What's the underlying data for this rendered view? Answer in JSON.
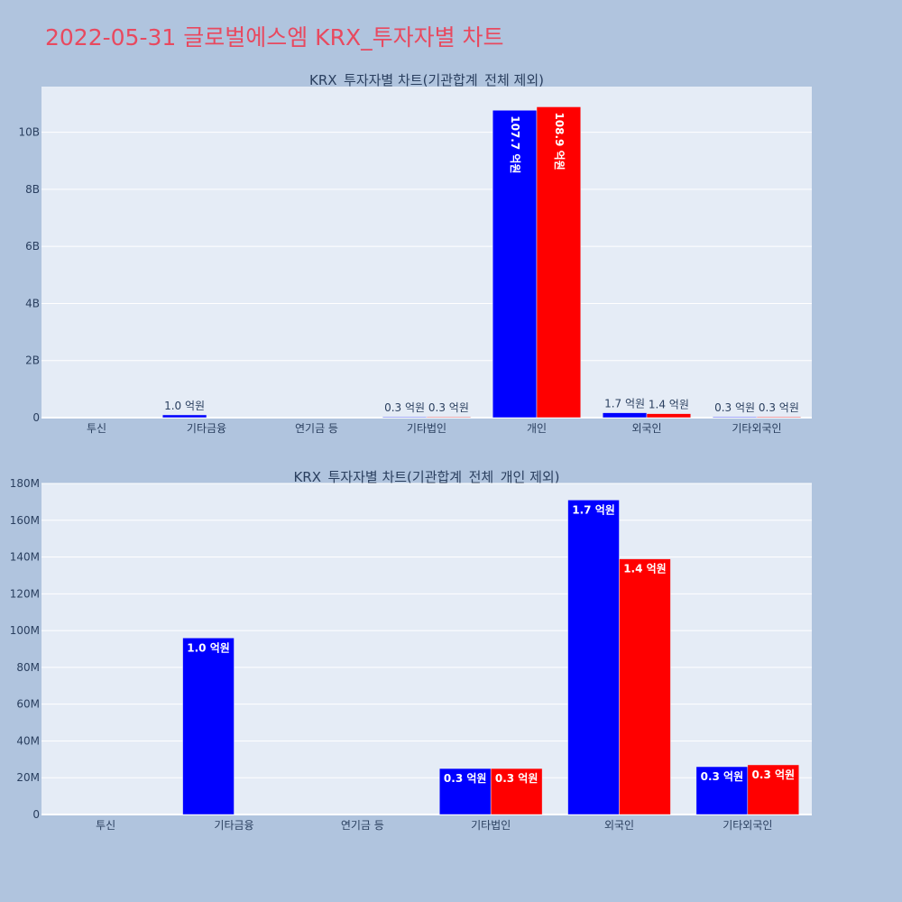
{
  "page": {
    "title": "2022-05-31 글로벌에스엠 KRX_투자자별 차트",
    "background": "#b0c4de"
  },
  "colors": {
    "buy": "#0000ff",
    "sell": "#ff0000",
    "plot_bg": "#e5ecf6",
    "title_color": "#e8495f"
  },
  "chart_data": [
    {
      "type": "bar",
      "title": "KRX_투자자별 차트(기관합계_전체 제외)",
      "categories": [
        "투신",
        "기타금융",
        "연기금 등",
        "기타법인",
        "개인",
        "외국인",
        "기타외국인"
      ],
      "ylim": [
        0,
        11600000000
      ],
      "yticks": [
        0,
        2000000000,
        4000000000,
        6000000000,
        8000000000,
        10000000000
      ],
      "ytick_labels": [
        "0",
        "2B",
        "4B",
        "6B",
        "8B",
        "10B"
      ],
      "grid": true,
      "label_position": "outside",
      "series": [
        {
          "color": "#0000ff",
          "values": [
            0,
            96000000,
            0,
            25000000,
            10770000000,
            171000000,
            26000000
          ],
          "labels": [
            "",
            "1.0 억원",
            "",
            "0.3 억원",
            "107.7 억원",
            "1.7 억원",
            "0.3 억원"
          ]
        },
        {
          "color": "#ff0000",
          "values": [
            0,
            0,
            0,
            25000000,
            10890000000,
            139000000,
            27000000
          ],
          "labels": [
            "",
            "",
            "",
            "0.3 억원",
            "108.9 억원",
            "1.4 억원",
            "0.3 억원"
          ]
        }
      ]
    },
    {
      "type": "bar",
      "title": "KRX_투자자별 차트(기관합계_전체_개인 제외)",
      "categories": [
        "투신",
        "기타금융",
        "연기금 등",
        "기타법인",
        "외국인",
        "기타외국인"
      ],
      "ylim": [
        0,
        180000000
      ],
      "yticks": [
        0,
        20000000,
        40000000,
        60000000,
        80000000,
        100000000,
        120000000,
        140000000,
        160000000,
        180000000
      ],
      "ytick_labels": [
        "0",
        "20M",
        "40M",
        "60M",
        "80M",
        "100M",
        "120M",
        "140M",
        "160M",
        "180M"
      ],
      "grid": true,
      "label_position": "inside",
      "series": [
        {
          "color": "#0000ff",
          "values": [
            0,
            96000000,
            0,
            25000000,
            171000000,
            26000000
          ],
          "labels": [
            "",
            "1.0 억원",
            "",
            "0.3 억원",
            "1.7 억원",
            "0.3 억원"
          ]
        },
        {
          "color": "#ff0000",
          "values": [
            0,
            0,
            0,
            25000000,
            139000000,
            27000000
          ],
          "labels": [
            "",
            "",
            "",
            "0.3 억원",
            "1.4 억원",
            "0.3 억원"
          ]
        }
      ]
    }
  ]
}
